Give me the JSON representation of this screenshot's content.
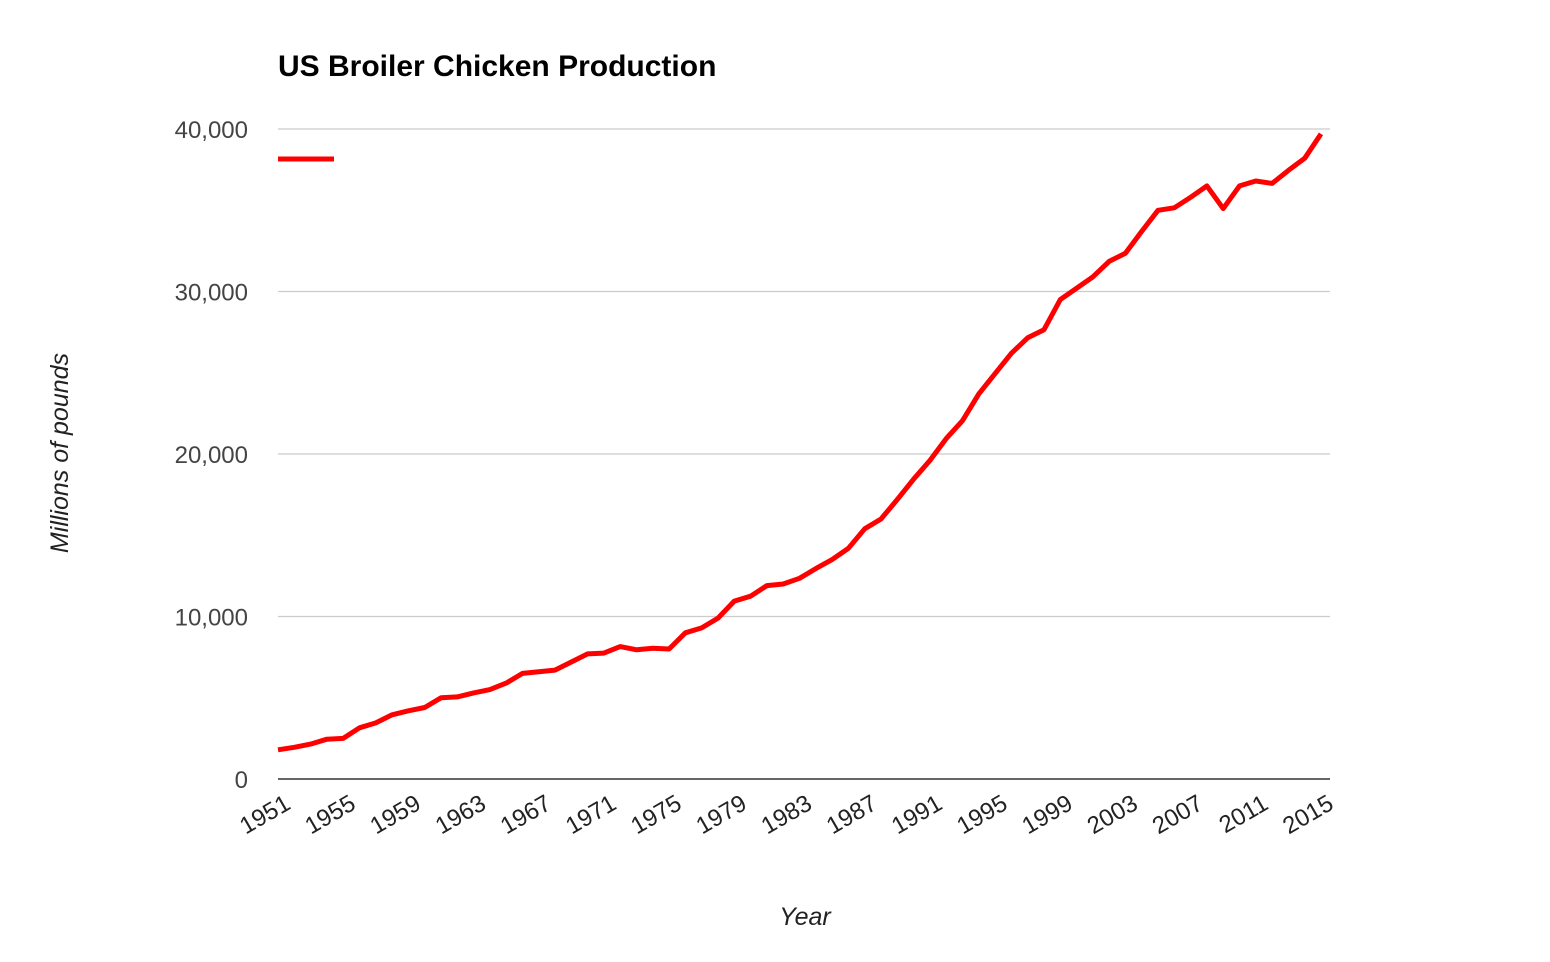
{
  "chart_data": {
    "type": "line",
    "title": "US Broiler Chicken Production",
    "xlabel": "Year",
    "ylabel": "Millions of pounds",
    "x": [
      1951,
      1952,
      1953,
      1954,
      1955,
      1956,
      1957,
      1958,
      1959,
      1960,
      1961,
      1962,
      1963,
      1964,
      1965,
      1966,
      1967,
      1968,
      1969,
      1970,
      1971,
      1972,
      1973,
      1974,
      1975,
      1976,
      1977,
      1978,
      1979,
      1980,
      1981,
      1982,
      1983,
      1984,
      1985,
      1986,
      1987,
      1988,
      1989,
      1990,
      1991,
      1992,
      1993,
      1994,
      1995,
      1996,
      1997,
      1998,
      1999,
      2000,
      2001,
      2002,
      2003,
      2004,
      2005,
      2006,
      2007,
      2008,
      2009,
      2010,
      2011,
      2012,
      2013,
      2014,
      2015
    ],
    "x_tick_labels": [
      "1951",
      "1955",
      "1959",
      "1963",
      "1967",
      "1971",
      "1975",
      "1979",
      "1983",
      "1987",
      "1991",
      "1995",
      "1999",
      "2003",
      "2007",
      "2011",
      "2015"
    ],
    "ylim": [
      0,
      40000
    ],
    "y_ticks": [
      0,
      10000,
      20000,
      30000,
      40000
    ],
    "y_tick_labels": [
      "0",
      "10,000",
      "20,000",
      "30,000",
      "40,000"
    ],
    "grid": true,
    "legend": "top-left",
    "series": [
      {
        "color": "#ff0000",
        "values": [
          1800,
          1950,
          2150,
          2450,
          2500,
          3150,
          3450,
          3950,
          4200,
          4400,
          5000,
          5050,
          5300,
          5500,
          5900,
          6500,
          6600,
          6700,
          7200,
          7700,
          7750,
          8150,
          7950,
          8050,
          8000,
          9000,
          9300,
          9900,
          10950,
          11250,
          11900,
          12000,
          12350,
          12950,
          13500,
          14200,
          15400,
          16000,
          17200,
          18450,
          19600,
          20950,
          22050,
          23700,
          24950,
          26200,
          27150,
          27650,
          29500,
          30200,
          30900,
          31850,
          32350,
          33700,
          35000,
          35150,
          35800,
          36500,
          35100,
          36500,
          36800,
          36650,
          37450,
          38200,
          39700
        ]
      }
    ]
  }
}
